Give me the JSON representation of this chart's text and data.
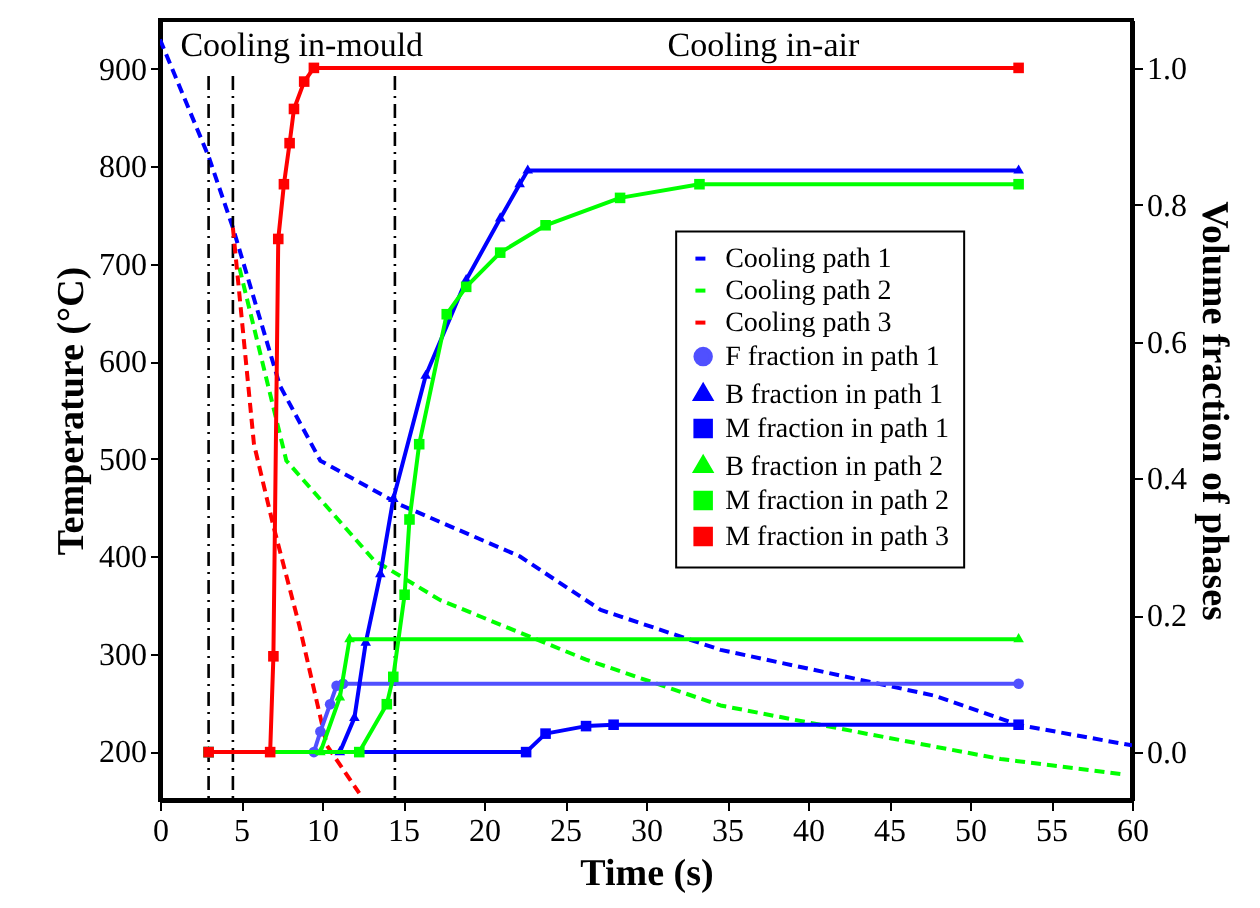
{
  "chart_data": {
    "type": "line",
    "xlabel": "Time (s)",
    "ylabel": "Temperature (°C)",
    "y2label": "Volume fraction of phases",
    "xlim": [
      0,
      60
    ],
    "xticks": [
      0,
      5,
      10,
      15,
      20,
      25,
      30,
      35,
      40,
      45,
      50,
      55,
      60
    ],
    "ylim": [
      150,
      950
    ],
    "yticks": [
      200,
      300,
      400,
      500,
      600,
      700,
      800,
      900
    ],
    "y2lim": [
      -0.07,
      1.07
    ],
    "y2ticks": [
      {
        "value": 0,
        "label": "0.0"
      },
      {
        "value": 0.2,
        "label": "0.2"
      },
      {
        "value": 0.4,
        "label": "0.4"
      },
      {
        "value": 0.6,
        "label": "0.6"
      },
      {
        "value": 0.8,
        "label": "0.8"
      },
      {
        "value": 1,
        "label": "1.0"
      }
    ],
    "legend": "right",
    "ref_lines": [
      {
        "axis": "x",
        "value": 3,
        "color": "#000000",
        "line_style": "dashdot"
      },
      {
        "axis": "x",
        "value": 4.5,
        "color": "#000000",
        "line_style": "dashdot"
      },
      {
        "axis": "x",
        "value": 14.5,
        "color": "#000000",
        "line_style": "dashdot"
      }
    ],
    "annotations": [
      "Cooling in-mould",
      "Cooling in-air"
    ],
    "series": [
      {
        "name": "Cooling path 1",
        "color": "#0000ff",
        "line_style": "dashed",
        "marker": "none",
        "x": [
          0,
          3,
          4.5,
          7.4,
          9.9,
          14.8,
          22.2,
          27.2,
          34.6,
          47.8,
          53,
          60
        ],
        "values": [
          930,
          810,
          737,
          575,
          498,
          453,
          400,
          345,
          304,
          257,
          227,
          206
        ]
      },
      {
        "name": "Cooling path 2",
        "color": "#00ff00",
        "line_style": "dashed",
        "marker": "none",
        "x": [
          4.9,
          7.8,
          13.2,
          17.3,
          26.3,
          34.6,
          43.6,
          51.9,
          59.6
        ],
        "values": [
          696,
          498,
          396,
          355,
          294,
          247,
          218,
          192,
          176
        ]
      },
      {
        "name": "Cooling path 3",
        "color": "#ff0000",
        "line_style": "dashed",
        "marker": "none",
        "x": [
          4.5,
          5.8,
          7,
          8.6,
          10.3,
          12.3
        ],
        "values": [
          737,
          515,
          431,
          329,
          206,
          157
        ]
      },
      {
        "name": "F fraction in path 1",
        "color": "#5050ff",
        "axis": "y2",
        "line_style": "solid",
        "marker": "circle",
        "x": [
          3,
          9.5,
          9.9,
          10.5,
          10.9,
          11.3,
          53
        ],
        "values": [
          0,
          0,
          0.03,
          0.07,
          0.097,
          0.1,
          0.1
        ]
      },
      {
        "name": "B fraction in path 1",
        "color": "#0000ff",
        "axis": "y2",
        "line_style": "solid",
        "marker": "triangle",
        "x": [
          3,
          11.1,
          12,
          12.7,
          13.6,
          14.4,
          16.4,
          18.9,
          21,
          22.2,
          22.7,
          53
        ],
        "values": [
          0,
          0,
          0.05,
          0.16,
          0.26,
          0.37,
          0.55,
          0.69,
          0.78,
          0.83,
          0.85,
          0.85
        ]
      },
      {
        "name": "M fraction in path 1",
        "color": "#0000ff",
        "axis": "y2",
        "line_style": "solid",
        "marker": "square",
        "x": [
          3,
          22.6,
          23.8,
          26.3,
          28,
          53
        ],
        "values": [
          0,
          0,
          0.027,
          0.038,
          0.04,
          0.04
        ]
      },
      {
        "name": "B fraction in path 2",
        "color": "#00ff00",
        "axis": "y2",
        "line_style": "solid",
        "marker": "triangle",
        "x": [
          3,
          9.9,
          11.1,
          11.7,
          53
        ],
        "values": [
          0,
          0,
          0.08,
          0.165,
          0.165
        ]
      },
      {
        "name": "M fraction in path 2",
        "color": "#00ff00",
        "axis": "y2",
        "line_style": "solid",
        "marker": "square",
        "x": [
          3,
          12.3,
          14,
          14.4,
          15.1,
          15.4,
          16,
          17.7,
          18.9,
          21,
          23.8,
          28.4,
          33.3,
          53
        ],
        "values": [
          0,
          0,
          0.07,
          0.11,
          0.23,
          0.34,
          0.45,
          0.64,
          0.68,
          0.73,
          0.77,
          0.81,
          0.83,
          0.83
        ]
      },
      {
        "name": "M fraction in path 3",
        "color": "#ff0000",
        "axis": "y2",
        "line_style": "solid",
        "marker": "square",
        "x": [
          3,
          6.8,
          7,
          7.3,
          7.65,
          8,
          8.27,
          8.9,
          9.5,
          53
        ],
        "values": [
          0,
          0,
          0.14,
          0.75,
          0.83,
          0.89,
          0.94,
          0.98,
          1,
          1
        ]
      }
    ]
  }
}
